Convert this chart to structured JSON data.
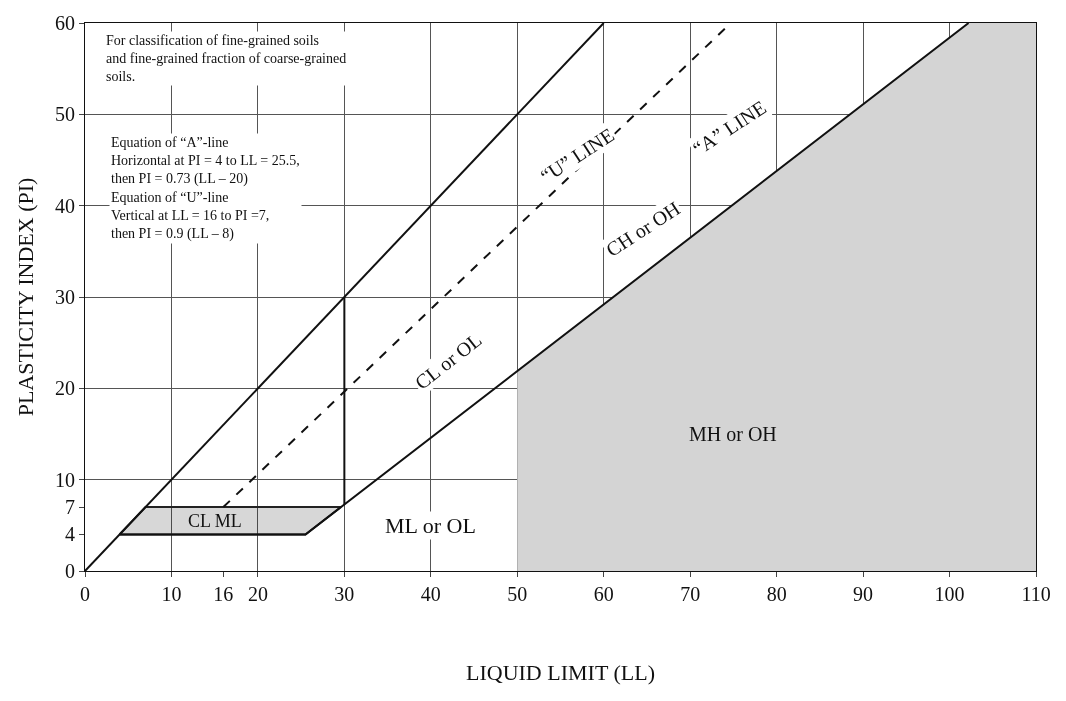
{
  "chart_data": {
    "type": "line",
    "xlabel": "LIQUID LIMIT (LL)",
    "ylabel": "PLASTICITY INDEX (PI)",
    "xlim": [
      0,
      110
    ],
    "ylim": [
      0,
      60
    ],
    "xticks": [
      0,
      10,
      16,
      20,
      30,
      40,
      50,
      60,
      70,
      80,
      90,
      100,
      110
    ],
    "yticks": [
      0,
      4,
      7,
      10,
      20,
      30,
      40,
      50,
      60
    ],
    "grid": true,
    "series": [
      {
        "type": "area",
        "color": "#d4d4d4",
        "x": [
          50,
          102.2,
          110
        ],
        "values": [
          21.9,
          60,
          60
        ]
      },
      {
        "type": "area",
        "color": "#222222",
        "x": [
          4,
          7,
          29.6,
          25.5,
          4
        ],
        "values": [
          4,
          7,
          7,
          4,
          4
        ]
      },
      {
        "color": "#111111",
        "x": [
          0,
          60
        ],
        "values": [
          0,
          60
        ]
      },
      {
        "color": "#111111",
        "line_style": "dashed",
        "x": [
          16,
          74.7
        ],
        "values": [
          7,
          60
        ]
      },
      {
        "color": "#111111",
        "x": [
          4,
          25.5,
          102.2
        ],
        "values": [
          4,
          4,
          60
        ]
      },
      {
        "color": "#111111",
        "x": [
          30,
          30
        ],
        "values": [
          7.3,
          30
        ]
      }
    ],
    "annotations": [
      "For classification of fine-grained soils\nand fine-grained fraction of coarse-grained\nsoils.",
      "Equation of “A”-line\nHorizontal at PI = 4 to LL = 25.5,\nthen PI = 0.73 (LL – 20)\nEquation of “U”-line\nVertical at LL = 16 to PI =7,\nthen PI = 0.9 (LL – 8)",
      "“U” LINE",
      "“A” LINE",
      "CH or OH",
      "CL or OL",
      "ML or OL",
      "MH or OH",
      "CL ML"
    ]
  }
}
